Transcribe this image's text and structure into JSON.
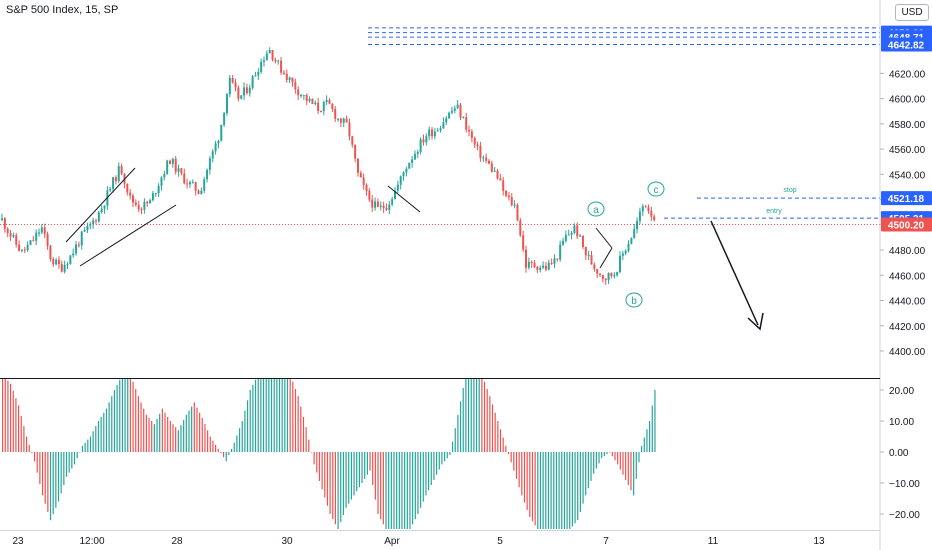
{
  "header": {
    "title": "S&P 500 Index, 15, SP",
    "currency": "USD"
  },
  "colors": {
    "up": "#26a69a",
    "down": "#ef5350",
    "histogram_up": "#26a69a",
    "histogram_down": "#ef5350",
    "level_line": "#2962ff",
    "price_line": "#ef5350",
    "annotation": "#26a69a",
    "arrow": "#131722"
  },
  "chart_data": [
    {
      "type": "candlestick",
      "title": "S&P 500 Index, 15, SP",
      "ylim": [
        4380,
        4670
      ],
      "y_ticks": [
        4400,
        4420,
        4440,
        4460,
        4480,
        4500,
        4520,
        4540,
        4560,
        4580,
        4600,
        4620
      ],
      "x_tick_labels": [
        "23",
        "12:00",
        "28",
        "30",
        "Apr",
        "5",
        "7",
        "11",
        "13"
      ],
      "series_path": [
        [
          "23",
          4504
        ],
        [
          "23",
          4490
        ],
        [
          "23",
          4478
        ],
        [
          "23",
          4486
        ],
        [
          "23",
          4498
        ],
        [
          "12:00",
          4472
        ],
        [
          "12:00",
          4466
        ],
        [
          "12:00",
          4476
        ],
        [
          "12:00",
          4490
        ],
        [
          "12:00",
          4500
        ],
        [
          "12:00",
          4512
        ],
        [
          "12:00",
          4530
        ],
        [
          "12:00",
          4546
        ],
        [
          "12:00",
          4520
        ],
        [
          "12:00",
          4514
        ],
        [
          "28",
          4518
        ],
        [
          "28",
          4536
        ],
        [
          "28",
          4552
        ],
        [
          "28",
          4540
        ],
        [
          "28",
          4532
        ],
        [
          "28",
          4526
        ],
        [
          "28",
          4550
        ],
        [
          "28",
          4572
        ],
        [
          "28",
          4614
        ],
        [
          "28",
          4600
        ],
        [
          "30",
          4610
        ],
        [
          "30",
          4626
        ],
        [
          "30",
          4640
        ],
        [
          "30",
          4626
        ],
        [
          "30",
          4616
        ],
        [
          "30",
          4606
        ],
        [
          "30",
          4598
        ],
        [
          "30",
          4592
        ],
        [
          "Apr",
          4596
        ],
        [
          "Apr",
          4584
        ],
        [
          "Apr",
          4578
        ],
        [
          "Apr",
          4540
        ],
        [
          "Apr",
          4522
        ],
        [
          "Apr",
          4512
        ],
        [
          "Apr",
          4516
        ],
        [
          "Apr",
          4530
        ],
        [
          "Apr",
          4548
        ],
        [
          "Apr",
          4560
        ],
        [
          "5",
          4572
        ],
        [
          "5",
          4576
        ],
        [
          "5",
          4586
        ],
        [
          "5",
          4594
        ],
        [
          "5",
          4578
        ],
        [
          "5",
          4560
        ],
        [
          "5",
          4550
        ],
        [
          "5",
          4540
        ],
        [
          "5",
          4522
        ],
        [
          "5",
          4514
        ],
        [
          "7",
          4468
        ],
        [
          "7",
          4468
        ],
        [
          "7",
          4466
        ],
        [
          "7",
          4472
        ],
        [
          "7",
          4490
        ],
        [
          "7",
          4498
        ],
        [
          "7",
          4478
        ],
        [
          "7",
          4466
        ],
        [
          "7",
          4458
        ],
        [
          "7",
          4462
        ],
        [
          "7",
          4480
        ],
        [
          "7",
          4496
        ],
        [
          "7",
          4518
        ],
        [
          "7",
          4506
        ]
      ],
      "price_levels": [
        4652.3,
        4648.71,
        4642.82,
        4521.18,
        4505.31,
        4500.2
      ],
      "last_price": 4500.2,
      "annotations": [
        {
          "label": "stop",
          "price": 4521.18
        },
        {
          "label": "entry",
          "price": 4505.31
        }
      ],
      "wave_labels": [
        "a",
        "b",
        "c"
      ]
    },
    {
      "type": "histogram",
      "ylim": [
        -25,
        25
      ],
      "y_ticks": [
        20.0,
        10.0,
        0.0,
        -10.0,
        -20.0
      ],
      "y_tick_labels": [
        "20.00",
        "10.00",
        "0.00",
        "−10.00",
        "−20.00"
      ],
      "values": [
        25,
        22,
        15,
        5,
        -3,
        -14,
        -22,
        -16,
        -8,
        -4,
        2,
        5,
        10,
        14,
        20,
        25,
        25,
        18,
        12,
        9,
        14,
        10,
        7,
        12,
        16,
        11,
        5,
        1,
        -3,
        3,
        10,
        20,
        25,
        25,
        25,
        25,
        25,
        18,
        8,
        -4,
        -12,
        -20,
        -25,
        -18,
        -14,
        -10,
        -6,
        -20,
        -25,
        -25,
        -25,
        -25,
        -20,
        -14,
        -9,
        -4,
        -1,
        12,
        25,
        25,
        25,
        18,
        10,
        2,
        -6,
        -14,
        -21,
        -25,
        -25,
        -25,
        -25,
        -25,
        -22,
        -14,
        -7,
        -2,
        0,
        -4,
        -9,
        -14,
        2,
        10,
        25
      ]
    }
  ]
}
